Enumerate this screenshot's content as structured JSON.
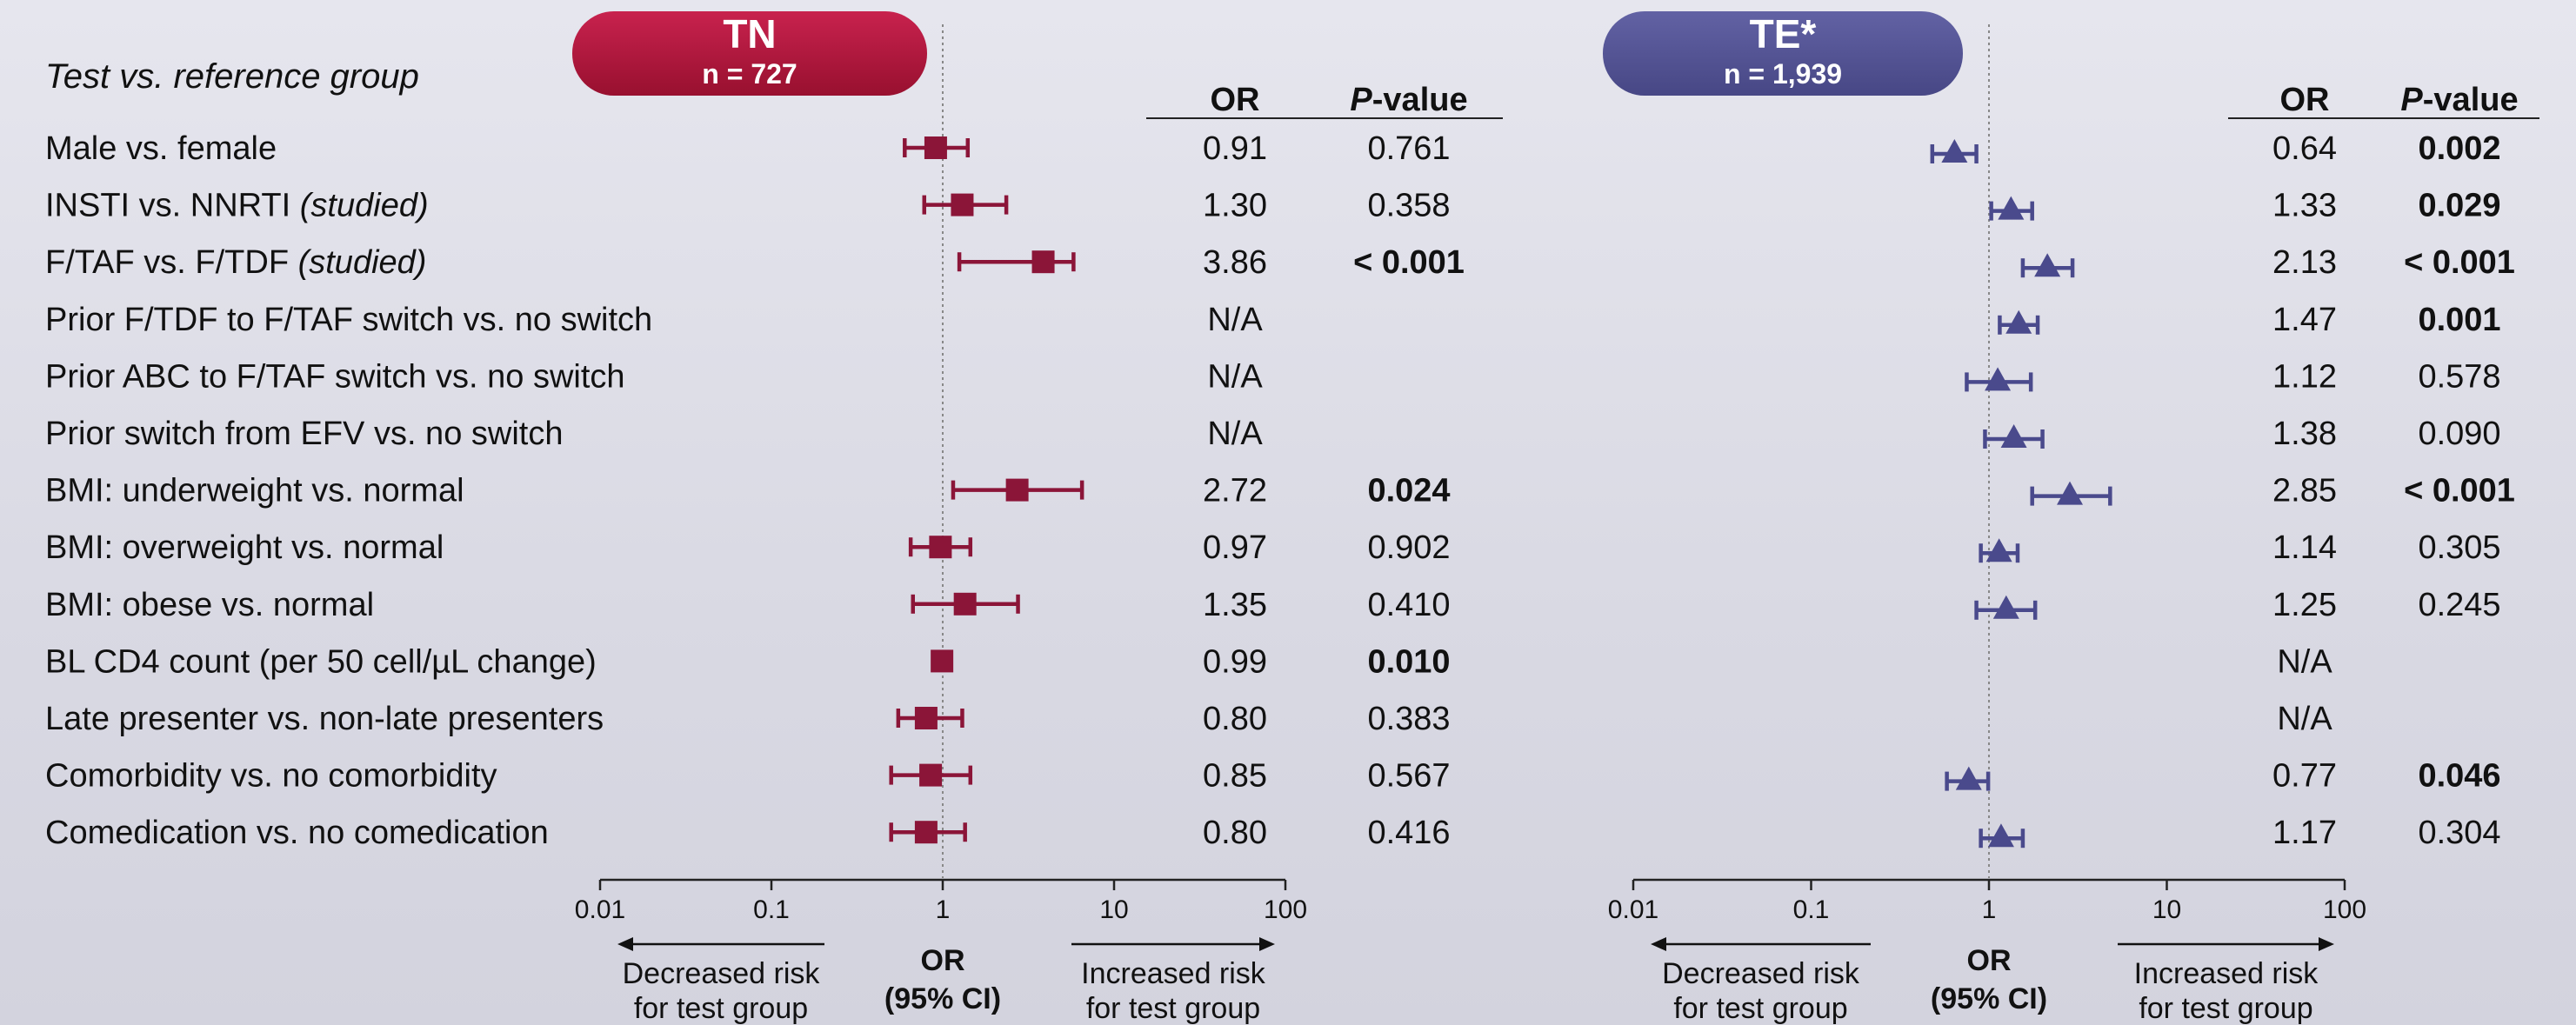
{
  "header": {
    "row_label_title": "Test vs. reference group",
    "or_header": "OR",
    "p_header_italic": "P",
    "p_header_rest": "-value",
    "colors": {
      "tn": "#8b1538",
      "te": "#4a4a8c",
      "tn_pill": "#b0163f",
      "te_pill": "#545493"
    }
  },
  "panels": [
    {
      "id": "tn",
      "pill_title": "TN",
      "pill_subtitle": "n = 727",
      "marker": "square",
      "axis_ticks": [
        "0.01",
        "0.1",
        "1",
        "10",
        "100"
      ],
      "axis_label_line1": "OR",
      "axis_label_line2": "(95% CI)",
      "left_arrow_line1": "Decreased risk",
      "left_arrow_line2": "for test group",
      "right_arrow_line1": "Increased risk",
      "right_arrow_line2": "for test group"
    },
    {
      "id": "te",
      "pill_title": "TE*",
      "pill_subtitle": "n = 1,939",
      "marker": "triangle",
      "axis_ticks": [
        "0.01",
        "0.1",
        "1",
        "10",
        "100"
      ],
      "axis_label_line1": "OR",
      "axis_label_line2": "(95% CI)",
      "left_arrow_line1": "Decreased risk",
      "left_arrow_line2": "for test group",
      "right_arrow_line1": "Increased risk",
      "right_arrow_line2": "for test group"
    }
  ],
  "chart_data": {
    "type": "forest",
    "x_scale": "log",
    "xlim": [
      0.01,
      100
    ],
    "reference_line": 1,
    "xlabel": "OR (95% CI)",
    "rows": [
      {
        "label": "Male vs. female",
        "label_italic": "",
        "tn": {
          "or_text": "0.91",
          "p_text": "0.761",
          "p_bold": false,
          "or": 0.91,
          "lo": 0.6,
          "hi": 1.4
        },
        "te": {
          "or_text": "0.64",
          "p_text": "0.002",
          "p_bold": true,
          "or": 0.64,
          "lo": 0.48,
          "hi": 0.85
        }
      },
      {
        "label": "INSTI vs. NNRTI ",
        "label_italic": "(studied)",
        "tn": {
          "or_text": "1.30",
          "p_text": "0.358",
          "p_bold": false,
          "or": 1.3,
          "lo": 0.78,
          "hi": 2.35
        },
        "te": {
          "or_text": "1.33",
          "p_text": "0.029",
          "p_bold": true,
          "or": 1.33,
          "lo": 1.03,
          "hi": 1.75
        }
      },
      {
        "label": "F/TAF vs. F/TDF ",
        "label_italic": "(studied)",
        "tn": {
          "or_text": "3.86",
          "p_text": "< 0.001",
          "p_bold": true,
          "or": 3.86,
          "lo": 1.25,
          "hi": 5.8
        },
        "te": {
          "or_text": "2.13",
          "p_text": "< 0.001",
          "p_bold": true,
          "or": 2.13,
          "lo": 1.55,
          "hi": 2.95
        }
      },
      {
        "label": "Prior F/TDF to F/TAF switch vs. no switch",
        "label_italic": "",
        "tn": {
          "or_text": "N/A",
          "p_text": "",
          "p_bold": false
        },
        "te": {
          "or_text": "1.47",
          "p_text": "0.001",
          "p_bold": true,
          "or": 1.47,
          "lo": 1.15,
          "hi": 1.88
        }
      },
      {
        "label": "Prior ABC to F/TAF switch vs. no switch",
        "label_italic": "",
        "tn": {
          "or_text": "N/A",
          "p_text": "",
          "p_bold": false
        },
        "te": {
          "or_text": "1.12",
          "p_text": "0.578",
          "p_bold": false,
          "or": 1.12,
          "lo": 0.75,
          "hi": 1.72
        }
      },
      {
        "label": "Prior switch from EFV vs. no switch",
        "label_italic": "",
        "tn": {
          "or_text": "N/A",
          "p_text": "",
          "p_bold": false
        },
        "te": {
          "or_text": "1.38",
          "p_text": "0.090",
          "p_bold": false,
          "or": 1.38,
          "lo": 0.95,
          "hi": 2.0
        }
      },
      {
        "label": "BMI: underweight vs. normal",
        "label_italic": "",
        "tn": {
          "or_text": "2.72",
          "p_text": "0.024",
          "p_bold": true,
          "or": 2.72,
          "lo": 1.15,
          "hi": 6.5
        },
        "te": {
          "or_text": "2.85",
          "p_text": "< 0.001",
          "p_bold": true,
          "or": 2.85,
          "lo": 1.75,
          "hi": 4.8
        }
      },
      {
        "label": "BMI: overweight vs. normal",
        "label_italic": "",
        "tn": {
          "or_text": "0.97",
          "p_text": "0.902",
          "p_bold": false,
          "or": 0.97,
          "lo": 0.65,
          "hi": 1.45
        },
        "te": {
          "or_text": "1.14",
          "p_text": "0.305",
          "p_bold": false,
          "or": 1.14,
          "lo": 0.9,
          "hi": 1.45
        }
      },
      {
        "label": "BMI: obese vs. normal",
        "label_italic": "",
        "tn": {
          "or_text": "1.35",
          "p_text": "0.410",
          "p_bold": false,
          "or": 1.35,
          "lo": 0.67,
          "hi": 2.75
        },
        "te": {
          "or_text": "1.25",
          "p_text": "0.245",
          "p_bold": false,
          "or": 1.25,
          "lo": 0.85,
          "hi": 1.82
        }
      },
      {
        "label": "BL CD4 count (per 50 cell/µL change)",
        "label_italic": "",
        "tn": {
          "or_text": "0.99",
          "p_text": "0.010",
          "p_bold": true,
          "or": 0.99,
          "lo": 0.97,
          "hi": 1.01
        },
        "te": {
          "or_text": "N/A",
          "p_text": "",
          "p_bold": false
        }
      },
      {
        "label": "Late presenter vs. non-late presenters",
        "label_italic": "",
        "tn": {
          "or_text": "0.80",
          "p_text": "0.383",
          "p_bold": false,
          "or": 0.8,
          "lo": 0.55,
          "hi": 1.3
        },
        "te": {
          "or_text": "N/A",
          "p_text": "",
          "p_bold": false
        }
      },
      {
        "label": "Comorbidity vs. no comorbidity",
        "label_italic": "",
        "tn": {
          "or_text": "0.85",
          "p_text": "0.567",
          "p_bold": false,
          "or": 0.85,
          "lo": 0.5,
          "hi": 1.45
        },
        "te": {
          "or_text": "0.77",
          "p_text": "0.046",
          "p_bold": true,
          "or": 0.77,
          "lo": 0.58,
          "hi": 0.99
        }
      },
      {
        "label": "Comedication vs. no comedication",
        "label_italic": "",
        "tn": {
          "or_text": "0.80",
          "p_text": "0.416",
          "p_bold": false,
          "or": 0.8,
          "lo": 0.5,
          "hi": 1.35
        },
        "te": {
          "or_text": "1.17",
          "p_text": "0.304",
          "p_bold": false,
          "or": 1.17,
          "lo": 0.9,
          "hi": 1.55
        }
      }
    ]
  }
}
